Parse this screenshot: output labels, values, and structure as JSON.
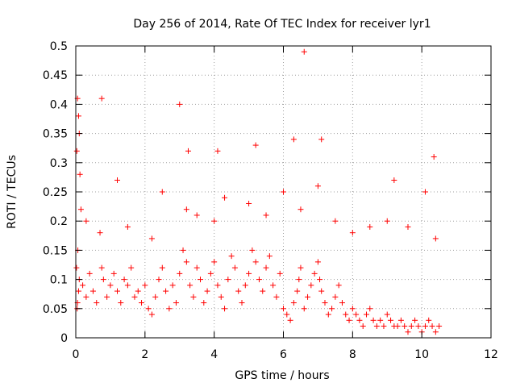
{
  "chart_data": {
    "type": "scatter",
    "title": "Day 256 of 2014, Rate Of TEC Index for receiver lyr1",
    "xlabel": "GPS time / hours",
    "ylabel": "ROTI / TECUs",
    "xlim": [
      0,
      12
    ],
    "ylim": [
      0,
      0.5
    ],
    "x_ticks": [
      0,
      2,
      4,
      6,
      8,
      10,
      12
    ],
    "x_tick_labels": [
      "0",
      "2",
      "4",
      "6",
      "8",
      "10",
      "12"
    ],
    "y_ticks": [
      0,
      0.05,
      0.1,
      0.15,
      0.2,
      0.25,
      0.3,
      0.35,
      0.4,
      0.45,
      0.5
    ],
    "y_tick_labels": [
      "0",
      "0.05",
      "0.1",
      "0.15",
      "0.2",
      "0.25",
      "0.3",
      "0.35",
      "0.4",
      "0.45",
      "0.5"
    ],
    "grid": true,
    "marker": "+",
    "color": "#ff0000",
    "series": [
      {
        "name": "ROTI",
        "x": [
          0.03,
          0.05,
          0.08,
          0.1,
          0.12,
          0.15,
          0.05,
          0.08,
          0.1,
          0.02,
          0.04,
          0.06,
          0.2,
          0.3,
          0.4,
          0.5,
          0.6,
          0.75,
          0.8,
          0.9,
          1.0,
          1.1,
          1.2,
          1.3,
          1.4,
          1.5,
          1.6,
          1.7,
          1.8,
          1.9,
          2.0,
          2.1,
          2.2,
          2.3,
          2.4,
          2.5,
          2.6,
          2.7,
          2.8,
          2.9,
          3.0,
          3.1,
          3.2,
          3.3,
          3.4,
          3.5,
          3.6,
          3.7,
          3.8,
          3.9,
          4.0,
          4.1,
          4.2,
          4.3,
          4.4,
          4.5,
          4.6,
          4.7,
          4.8,
          4.9,
          5.0,
          5.1,
          5.2,
          5.3,
          5.4,
          5.5,
          5.6,
          5.7,
          5.8,
          5.9,
          6.0,
          6.1,
          6.2,
          6.3,
          6.4,
          6.45,
          6.5,
          6.6,
          6.7,
          6.8,
          6.9,
          7.0,
          7.05,
          7.1,
          7.2,
          7.3,
          7.4,
          7.5,
          7.6,
          7.7,
          7.8,
          7.9,
          8.0,
          8.1,
          8.2,
          8.3,
          8.4,
          8.5,
          8.6,
          8.7,
          8.8,
          8.9,
          9.0,
          9.1,
          9.2,
          9.3,
          9.4,
          9.5,
          9.6,
          9.7,
          9.8,
          9.9,
          10.0,
          10.1,
          10.2,
          10.3,
          10.4,
          10.5,
          0.3,
          0.7,
          1.5,
          2.2,
          3.2,
          3.5,
          4.0,
          4.3,
          5.0,
          5.5,
          6.0,
          6.5,
          7.0,
          7.5,
          8.0,
          9.0,
          9.6,
          10.4,
          0.75,
          1.2,
          2.5,
          3.0,
          3.25,
          4.1,
          5.2,
          6.3,
          6.6,
          7.1,
          8.5,
          9.2,
          10.1,
          10.35
        ],
        "y": [
          0.32,
          0.41,
          0.38,
          0.35,
          0.28,
          0.22,
          0.06,
          0.08,
          0.1,
          0.12,
          0.05,
          0.15,
          0.09,
          0.07,
          0.11,
          0.08,
          0.06,
          0.12,
          0.1,
          0.07,
          0.09,
          0.11,
          0.08,
          0.06,
          0.1,
          0.09,
          0.12,
          0.07,
          0.08,
          0.06,
          0.09,
          0.05,
          0.04,
          0.07,
          0.1,
          0.12,
          0.08,
          0.05,
          0.09,
          0.06,
          0.11,
          0.15,
          0.13,
          0.09,
          0.07,
          0.12,
          0.1,
          0.06,
          0.08,
          0.11,
          0.13,
          0.09,
          0.07,
          0.05,
          0.1,
          0.14,
          0.12,
          0.08,
          0.06,
          0.09,
          0.11,
          0.15,
          0.13,
          0.1,
          0.08,
          0.12,
          0.14,
          0.09,
          0.07,
          0.11,
          0.05,
          0.04,
          0.03,
          0.06,
          0.08,
          0.1,
          0.12,
          0.05,
          0.07,
          0.09,
          0.11,
          0.13,
          0.1,
          0.08,
          0.06,
          0.04,
          0.05,
          0.07,
          0.09,
          0.06,
          0.04,
          0.03,
          0.05,
          0.04,
          0.03,
          0.02,
          0.04,
          0.05,
          0.03,
          0.02,
          0.03,
          0.02,
          0.04,
          0.03,
          0.02,
          0.02,
          0.03,
          0.02,
          0.01,
          0.02,
          0.03,
          0.02,
          0.01,
          0.02,
          0.03,
          0.02,
          0.01,
          0.02,
          0.2,
          0.18,
          0.19,
          0.17,
          0.22,
          0.21,
          0.2,
          0.24,
          0.23,
          0.21,
          0.25,
          0.22,
          0.26,
          0.2,
          0.18,
          0.2,
          0.19,
          0.17,
          0.41,
          0.27,
          0.25,
          0.4,
          0.32,
          0.32,
          0.33,
          0.34,
          0.49,
          0.34,
          0.19,
          0.27,
          0.25,
          0.31
        ]
      }
    ]
  }
}
